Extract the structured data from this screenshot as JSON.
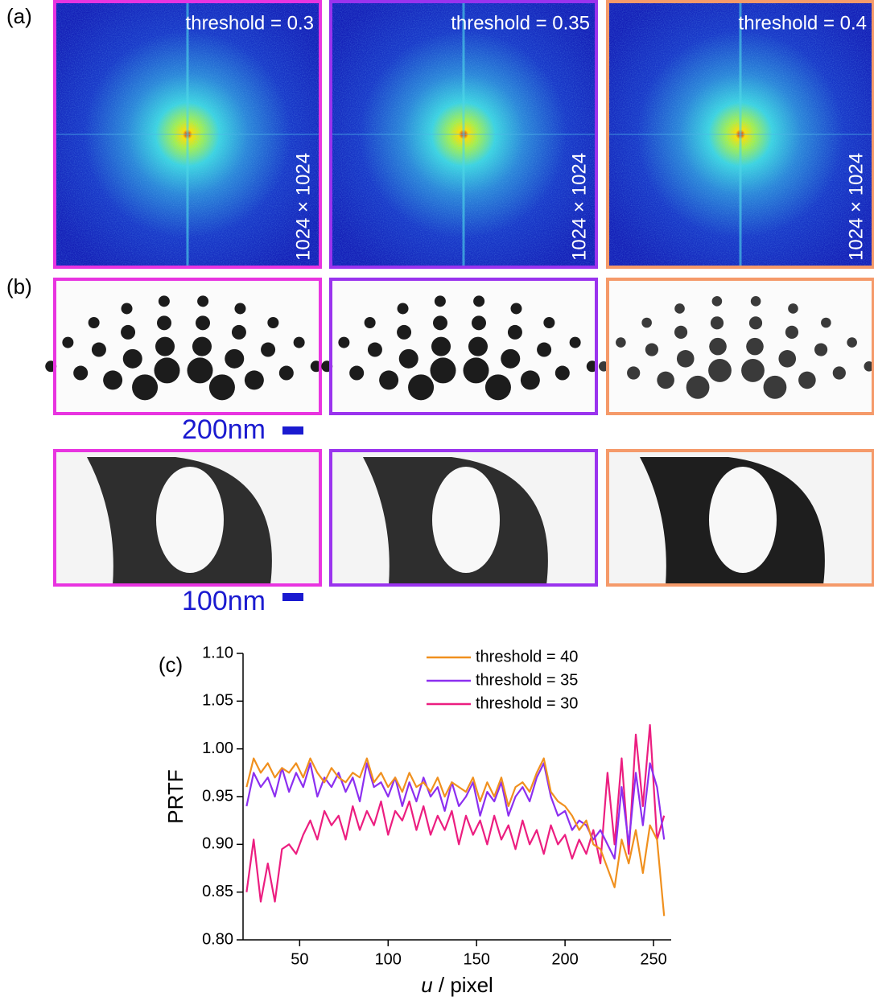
{
  "figure": {
    "a": {
      "label": "(a)",
      "panels": [
        {
          "threshold": "threshold = 0.3",
          "size": "1024 × 1024"
        },
        {
          "threshold": "threshold = 0.35",
          "size": "1024 × 1024"
        },
        {
          "threshold": "threshold = 0.4",
          "size": "1024 × 1024"
        }
      ]
    },
    "b": {
      "label": "(b)",
      "scale_bars": [
        "200nm",
        "100nm"
      ]
    }
  },
  "chart_data": {
    "type": "line",
    "label": "(c)",
    "ylabel": "PRTF",
    "xlabel": {
      "symbol": "u",
      "text": "/ pixel"
    },
    "x": [
      20,
      24,
      28,
      32,
      36,
      40,
      44,
      48,
      52,
      56,
      60,
      64,
      68,
      72,
      76,
      80,
      84,
      88,
      92,
      96,
      100,
      104,
      108,
      112,
      116,
      120,
      124,
      128,
      132,
      136,
      140,
      144,
      148,
      152,
      156,
      160,
      164,
      168,
      172,
      176,
      180,
      184,
      188,
      192,
      196,
      200,
      204,
      208,
      212,
      216,
      220,
      224,
      228,
      232,
      236,
      240,
      244,
      248,
      252,
      256
    ],
    "series": [
      {
        "name": "threshold = 40",
        "color": "#f0901e",
        "values": [
          0.96,
          0.99,
          0.975,
          0.985,
          0.97,
          0.98,
          0.975,
          0.985,
          0.97,
          0.99,
          0.975,
          0.965,
          0.98,
          0.97,
          0.965,
          0.975,
          0.97,
          0.99,
          0.965,
          0.975,
          0.96,
          0.97,
          0.955,
          0.975,
          0.96,
          0.965,
          0.955,
          0.97,
          0.95,
          0.965,
          0.96,
          0.955,
          0.97,
          0.945,
          0.965,
          0.95,
          0.97,
          0.94,
          0.96,
          0.965,
          0.955,
          0.975,
          0.99,
          0.955,
          0.945,
          0.94,
          0.93,
          0.915,
          0.925,
          0.9,
          0.895,
          0.875,
          0.855,
          0.905,
          0.88,
          0.915,
          0.87,
          0.92,
          0.905,
          0.825
        ]
      },
      {
        "name": "threshold = 35",
        "color": "#8c2ff0",
        "values": [
          0.94,
          0.975,
          0.96,
          0.97,
          0.95,
          0.98,
          0.955,
          0.975,
          0.96,
          0.985,
          0.95,
          0.97,
          0.96,
          0.975,
          0.955,
          0.97,
          0.945,
          0.985,
          0.96,
          0.965,
          0.95,
          0.97,
          0.94,
          0.965,
          0.945,
          0.97,
          0.95,
          0.96,
          0.935,
          0.965,
          0.94,
          0.95,
          0.965,
          0.93,
          0.955,
          0.945,
          0.965,
          0.93,
          0.95,
          0.96,
          0.945,
          0.97,
          0.985,
          0.95,
          0.93,
          0.935,
          0.915,
          0.925,
          0.92,
          0.905,
          0.915,
          0.9,
          0.885,
          0.96,
          0.9,
          0.975,
          0.92,
          0.985,
          0.96,
          0.905
        ]
      },
      {
        "name": "threshold = 30",
        "color": "#ec1e80",
        "values": [
          0.85,
          0.905,
          0.84,
          0.88,
          0.84,
          0.895,
          0.9,
          0.89,
          0.91,
          0.925,
          0.905,
          0.935,
          0.92,
          0.93,
          0.905,
          0.94,
          0.915,
          0.935,
          0.92,
          0.945,
          0.91,
          0.935,
          0.925,
          0.945,
          0.915,
          0.94,
          0.91,
          0.93,
          0.915,
          0.935,
          0.9,
          0.93,
          0.91,
          0.925,
          0.9,
          0.93,
          0.905,
          0.92,
          0.895,
          0.925,
          0.9,
          0.915,
          0.89,
          0.92,
          0.9,
          0.91,
          0.885,
          0.905,
          0.89,
          0.915,
          0.88,
          0.975,
          0.9,
          0.99,
          0.89,
          1.015,
          0.94,
          1.025,
          0.905,
          0.93
        ]
      }
    ],
    "xlim": [
      18,
      260
    ],
    "ylim": [
      0.8,
      1.1
    ],
    "xticks": [
      50,
      100,
      150,
      200,
      250
    ],
    "yticks": [
      {
        "value": 0.8,
        "label": "0.80"
      },
      0.85,
      {
        "value": 0.9,
        "label": "0.90"
      },
      0.95,
      {
        "value": 1,
        "label": "1.00"
      },
      1.05,
      {
        "value": 1.1,
        "label": "1.10"
      }
    ],
    "legend": "top"
  }
}
